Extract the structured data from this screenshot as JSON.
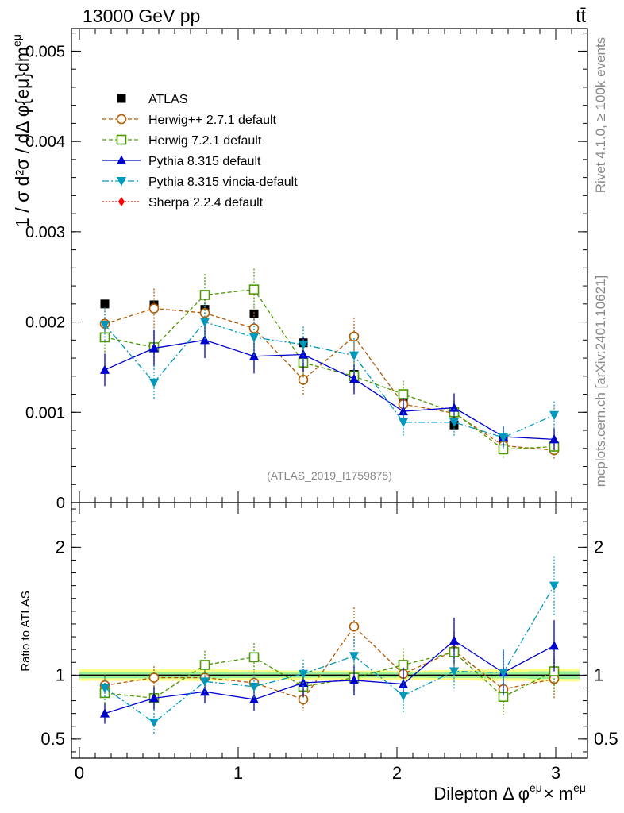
{
  "header": {
    "energy_label": "13000 GeV pp",
    "process_label": "tt̄"
  },
  "side_labels": {
    "rivet": "Rivet 4.1.0, ≥ 100k events",
    "mcplots": "mcplots.cern.ch [arXiv:2401.10621]"
  },
  "analysis_label": "(ATLAS_2019_I1759875)",
  "colors": {
    "ATLAS": "#000000",
    "Herwig++ 2.7.1 default": "#b35900",
    "Herwig 7.2.1 default": "#4c9900",
    "Pythia 8.315 default": "#0000cc",
    "Pythia 8.315 vincia-default": "#0099bb",
    "Sherpa 2.2.4 default": "#ff0000"
  },
  "chart_data": [
    {
      "type": "scatter",
      "title": "",
      "xlabel": "Dilepton Δ φ^{eμ} × m^{eμ}",
      "ylabel": "1 / σ  d²σ / dΔ φ{eμ}dm^{eμ}",
      "ylabel_text": "1 / σ d²σ / dΔ φ{eμ}dm",
      "ylabel_sup": "eμ",
      "xlim": [
        -0.05,
        3.2
      ],
      "ylim": [
        0,
        0.00525
      ],
      "yticks": [
        0,
        0.001,
        0.002,
        0.003,
        0.004,
        0.005
      ],
      "ytick_labels": [
        "0",
        "0.001",
        "0.002",
        "0.003",
        "0.004",
        "0.005"
      ],
      "x": [
        0.16,
        0.47,
        0.79,
        1.1,
        1.41,
        1.73,
        2.04,
        2.36,
        2.67,
        2.99
      ],
      "series": [
        {
          "name": "ATLAS",
          "values": [
            0.0022,
            0.00219,
            0.00214,
            0.00209,
            0.00177,
            0.00142,
            0.0011,
            0.00086,
            0.00071,
            0.0006
          ],
          "errors": [
            4e-05,
            4e-05,
            4e-05,
            4e-05,
            3e-05,
            3e-05,
            3e-05,
            2e-05,
            2e-05,
            2e-05
          ]
        },
        {
          "name": "Herwig++ 2.7.1 default",
          "values": [
            0.00198,
            0.00215,
            0.0021,
            0.00193,
            0.00136,
            0.00184,
            0.00109,
            0.00099,
            0.00063,
            0.00058
          ],
          "errors": [
            0.00018,
            0.00022,
            0.00022,
            0.00018,
            0.00017,
            0.00021,
            0.00014,
            0.00013,
            0.0001,
            0.0001
          ]
        },
        {
          "name": "Herwig 7.2.1 default",
          "values": [
            0.00183,
            0.00172,
            0.0023,
            0.00236,
            0.00155,
            0.0014,
            0.0012,
            0.001,
            0.00059,
            0.00062
          ],
          "errors": [
            0.00017,
            0.00018,
            0.00023,
            0.00023,
            0.00017,
            0.00016,
            0.00015,
            0.00013,
            0.0001,
            0.0001
          ]
        },
        {
          "name": "Pythia 8.315 default",
          "values": [
            0.00147,
            0.00171,
            0.0018,
            0.00162,
            0.00164,
            0.00137,
            0.00101,
            0.00105,
            0.00073,
            0.0007
          ],
          "errors": [
            0.00018,
            0.0002,
            0.0002,
            0.00019,
            0.00019,
            0.00017,
            0.00015,
            0.00016,
            0.00012,
            0.00012
          ]
        },
        {
          "name": "Pythia 8.315 vincia-default",
          "values": [
            0.00197,
            0.00133,
            0.002,
            0.00183,
            0.00175,
            0.00163,
            0.00089,
            0.00089,
            0.00072,
            0.00097
          ],
          "errors": [
            0.00019,
            0.00019,
            0.00021,
            0.0002,
            0.0002,
            0.00019,
            0.00015,
            0.00015,
            0.00013,
            0.00015
          ]
        }
      ]
    },
    {
      "type": "scatter",
      "title": "",
      "xlabel": "Dilepton Δ φ^{eμ} × m^{eμ}",
      "ylabel": "Ratio to ATLAS",
      "xlim": [
        -0.05,
        3.2
      ],
      "ylim": [
        0.35,
        2.35
      ],
      "yticks": [
        0.5,
        1,
        2
      ],
      "ytick_labels": [
        "0.5",
        "1",
        "2"
      ],
      "xticks": [
        0,
        1,
        2,
        3
      ],
      "xtick_labels": [
        "0",
        "1",
        "2",
        "3"
      ],
      "reference_line": 1,
      "x": [
        0.16,
        0.47,
        0.79,
        1.1,
        1.41,
        1.73,
        2.04,
        2.36,
        2.67,
        2.99
      ],
      "band_outer": [
        0.045,
        0.045,
        0.045,
        0.04,
        0.035,
        0.035,
        0.035,
        0.04,
        0.045,
        0.05
      ],
      "band_inner": [
        0.025,
        0.025,
        0.025,
        0.022,
        0.02,
        0.02,
        0.02,
        0.022,
        0.025,
        0.03
      ],
      "series": [
        {
          "name": "Herwig++ 2.7.1 default",
          "values": [
            0.92,
            0.98,
            0.98,
            0.94,
            0.81,
            1.38,
            1.01,
            1.19,
            0.89,
            0.97
          ],
          "errors": [
            0.08,
            0.09,
            0.1,
            0.09,
            0.09,
            0.15,
            0.12,
            0.15,
            0.13,
            0.16
          ]
        },
        {
          "name": "Herwig 7.2.1 default",
          "values": [
            0.86,
            0.82,
            1.08,
            1.14,
            0.91,
            0.98,
            1.08,
            1.18,
            0.83,
            1.03
          ],
          "errors": [
            0.08,
            0.08,
            0.11,
            0.11,
            0.1,
            0.11,
            0.13,
            0.15,
            0.14,
            0.17
          ]
        },
        {
          "name": "Pythia 8.315 default",
          "values": [
            0.7,
            0.82,
            0.87,
            0.81,
            0.94,
            0.96,
            0.93,
            1.27,
            1.02,
            1.23
          ],
          "errors": [
            0.08,
            0.09,
            0.09,
            0.09,
            0.11,
            0.12,
            0.13,
            0.18,
            0.18,
            0.2
          ]
        },
        {
          "name": "Pythia 8.315 vincia-default",
          "values": [
            0.9,
            0.63,
            0.95,
            0.91,
            1.01,
            1.15,
            0.84,
            1.03,
            1.02,
            1.7
          ],
          "errors": [
            0.09,
            0.1,
            0.1,
            0.1,
            0.11,
            0.13,
            0.13,
            0.15,
            0.18,
            0.23
          ]
        }
      ]
    }
  ],
  "legend": [
    {
      "label": "ATLAS",
      "marker": "square-filled",
      "line": "none"
    },
    {
      "label": "Herwig++ 2.7.1 default",
      "marker": "circle-open",
      "line": "dashed"
    },
    {
      "label": "Herwig 7.2.1 default",
      "marker": "square-open",
      "line": "dashed"
    },
    {
      "label": "Pythia 8.315 default",
      "marker": "triangle-up",
      "line": "solid"
    },
    {
      "label": "Pythia 8.315 vincia-default",
      "marker": "triangle-down",
      "line": "dashdot"
    },
    {
      "label": "Sherpa 2.2.4 default",
      "marker": "diamond",
      "line": "dotted"
    }
  ]
}
